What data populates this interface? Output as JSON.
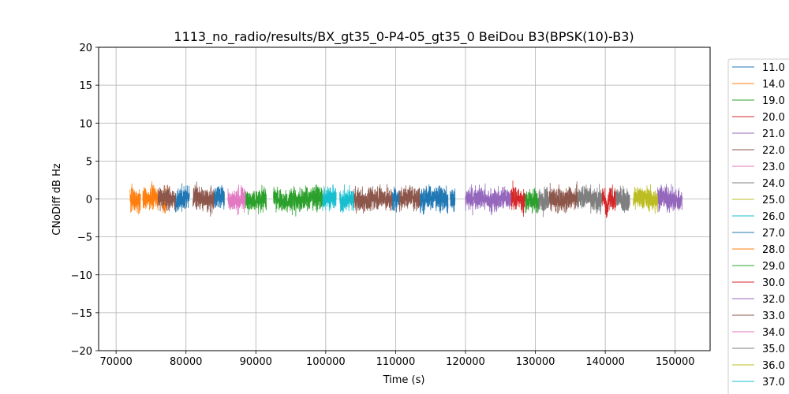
{
  "chart_data": {
    "type": "line",
    "title": "1113_no_radio/results/BX_gt35_0-P4-05_gt35_0 BeiDou B3(BPSK(10)-B3)",
    "xlabel": "Time (s)",
    "ylabel": "CNoDiff dB Hz",
    "xlim": [
      67500,
      155000
    ],
    "ylim": [
      -20,
      20
    ],
    "x_ticks": [
      70000,
      80000,
      90000,
      100000,
      110000,
      120000,
      130000,
      140000,
      150000
    ],
    "y_ticks": [
      -20,
      -15,
      -10,
      -5,
      0,
      5,
      10,
      15,
      20
    ],
    "grid": true,
    "legend_position": "right, outside plot",
    "series": [
      {
        "name": "11.0",
        "color": "#1f77b4",
        "segments": [
          [
            78500,
            80500
          ],
          [
            84000,
            85500
          ],
          [
            109500,
            110500
          ],
          [
            113500,
            117500
          ],
          [
            117800,
            118500
          ]
        ]
      },
      {
        "name": "14.0",
        "color": "#ff7f0e",
        "segments": [
          [
            72000,
            73500
          ],
          [
            73800,
            76000
          ],
          [
            76500,
            77200
          ]
        ]
      },
      {
        "name": "19.0",
        "color": "#2ca02c",
        "segments": [
          [
            88500,
            91500
          ],
          [
            92500,
            95500
          ],
          [
            128500,
            130500
          ]
        ]
      },
      {
        "name": "20.0",
        "color": "#d62728",
        "segments": [
          [
            126500,
            128500
          ],
          [
            139500,
            141500
          ]
        ]
      },
      {
        "name": "21.0",
        "color": "#9467bd",
        "segments": [
          [
            120000,
            126500
          ],
          [
            147500,
            151000
          ]
        ]
      },
      {
        "name": "22.0",
        "color": "#8c564b",
        "segments": [
          [
            76000,
            78500
          ],
          [
            81000,
            84000
          ],
          [
            104000,
            109500
          ],
          [
            110500,
            113500
          ]
        ]
      },
      {
        "name": "23.0",
        "color": "#e377c2",
        "segments": [
          [
            86000,
            88500
          ]
        ]
      },
      {
        "name": "24.0",
        "color": "#7f7f7f",
        "segments": [
          [
            130500,
            132000
          ],
          [
            136000,
            139500
          ],
          [
            141500,
            143500
          ]
        ]
      },
      {
        "name": "25.0",
        "color": "#bcbd22",
        "segments": [
          [
            144000,
            147500
          ]
        ]
      },
      {
        "name": "26.0",
        "color": "#17becf",
        "segments": [
          [
            99500,
            101500
          ],
          [
            102000,
            104000
          ]
        ]
      },
      {
        "name": "27.0",
        "color": "#1f77b4",
        "segments": []
      },
      {
        "name": "28.0",
        "color": "#ff7f0e",
        "segments": []
      },
      {
        "name": "29.0",
        "color": "#2ca02c",
        "segments": [
          [
            95500,
            99500
          ]
        ]
      },
      {
        "name": "30.0",
        "color": "#d62728",
        "segments": []
      },
      {
        "name": "32.0",
        "color": "#9467bd",
        "segments": []
      },
      {
        "name": "33.0",
        "color": "#8c564b",
        "segments": [
          [
            132000,
            136000
          ]
        ]
      },
      {
        "name": "34.0",
        "color": "#e377c2",
        "segments": []
      },
      {
        "name": "35.0",
        "color": "#7f7f7f",
        "segments": []
      },
      {
        "name": "36.0",
        "color": "#bcbd22",
        "segments": []
      },
      {
        "name": "37.0",
        "color": "#17becf",
        "segments": []
      }
    ]
  }
}
